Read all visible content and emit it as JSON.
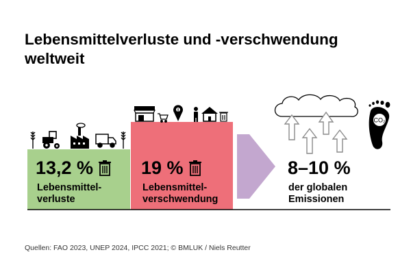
{
  "title": {
    "line1": "Lebensmittelverluste und -verschwendung",
    "line2": "weltweit"
  },
  "colors": {
    "losses": "#a8d08d",
    "waste": "#ee6f79",
    "arrow": "#c3a7cf",
    "line": "#000000"
  },
  "losses": {
    "value": "13,2 %",
    "label_line1": "Lebensmittel-",
    "label_line2": "verluste",
    "icons": [
      "wheat-icon",
      "tractor-icon",
      "factory-icon",
      "truck-icon",
      "wheat-icon"
    ]
  },
  "waste": {
    "value": "19 %",
    "label_line1": "Lebensmittel-",
    "label_line2": "verschwendung",
    "icons": [
      "shop-icon",
      "cart-icon",
      "location-pin-icon",
      "person-icon",
      "house-icon",
      "bin-icon"
    ]
  },
  "emissions": {
    "value": "8–10 %",
    "label_line1": "der globalen",
    "label_line2": "Emissionen",
    "icons": [
      "cloud-icon",
      "up-arrows-icon",
      "co2-footprint-icon"
    ],
    "co2_text": "CO₂"
  },
  "source": "Quellen: FAO 2023, UNEP 2024, IPCC 2021; © BMLUK / Niels Reutter"
}
